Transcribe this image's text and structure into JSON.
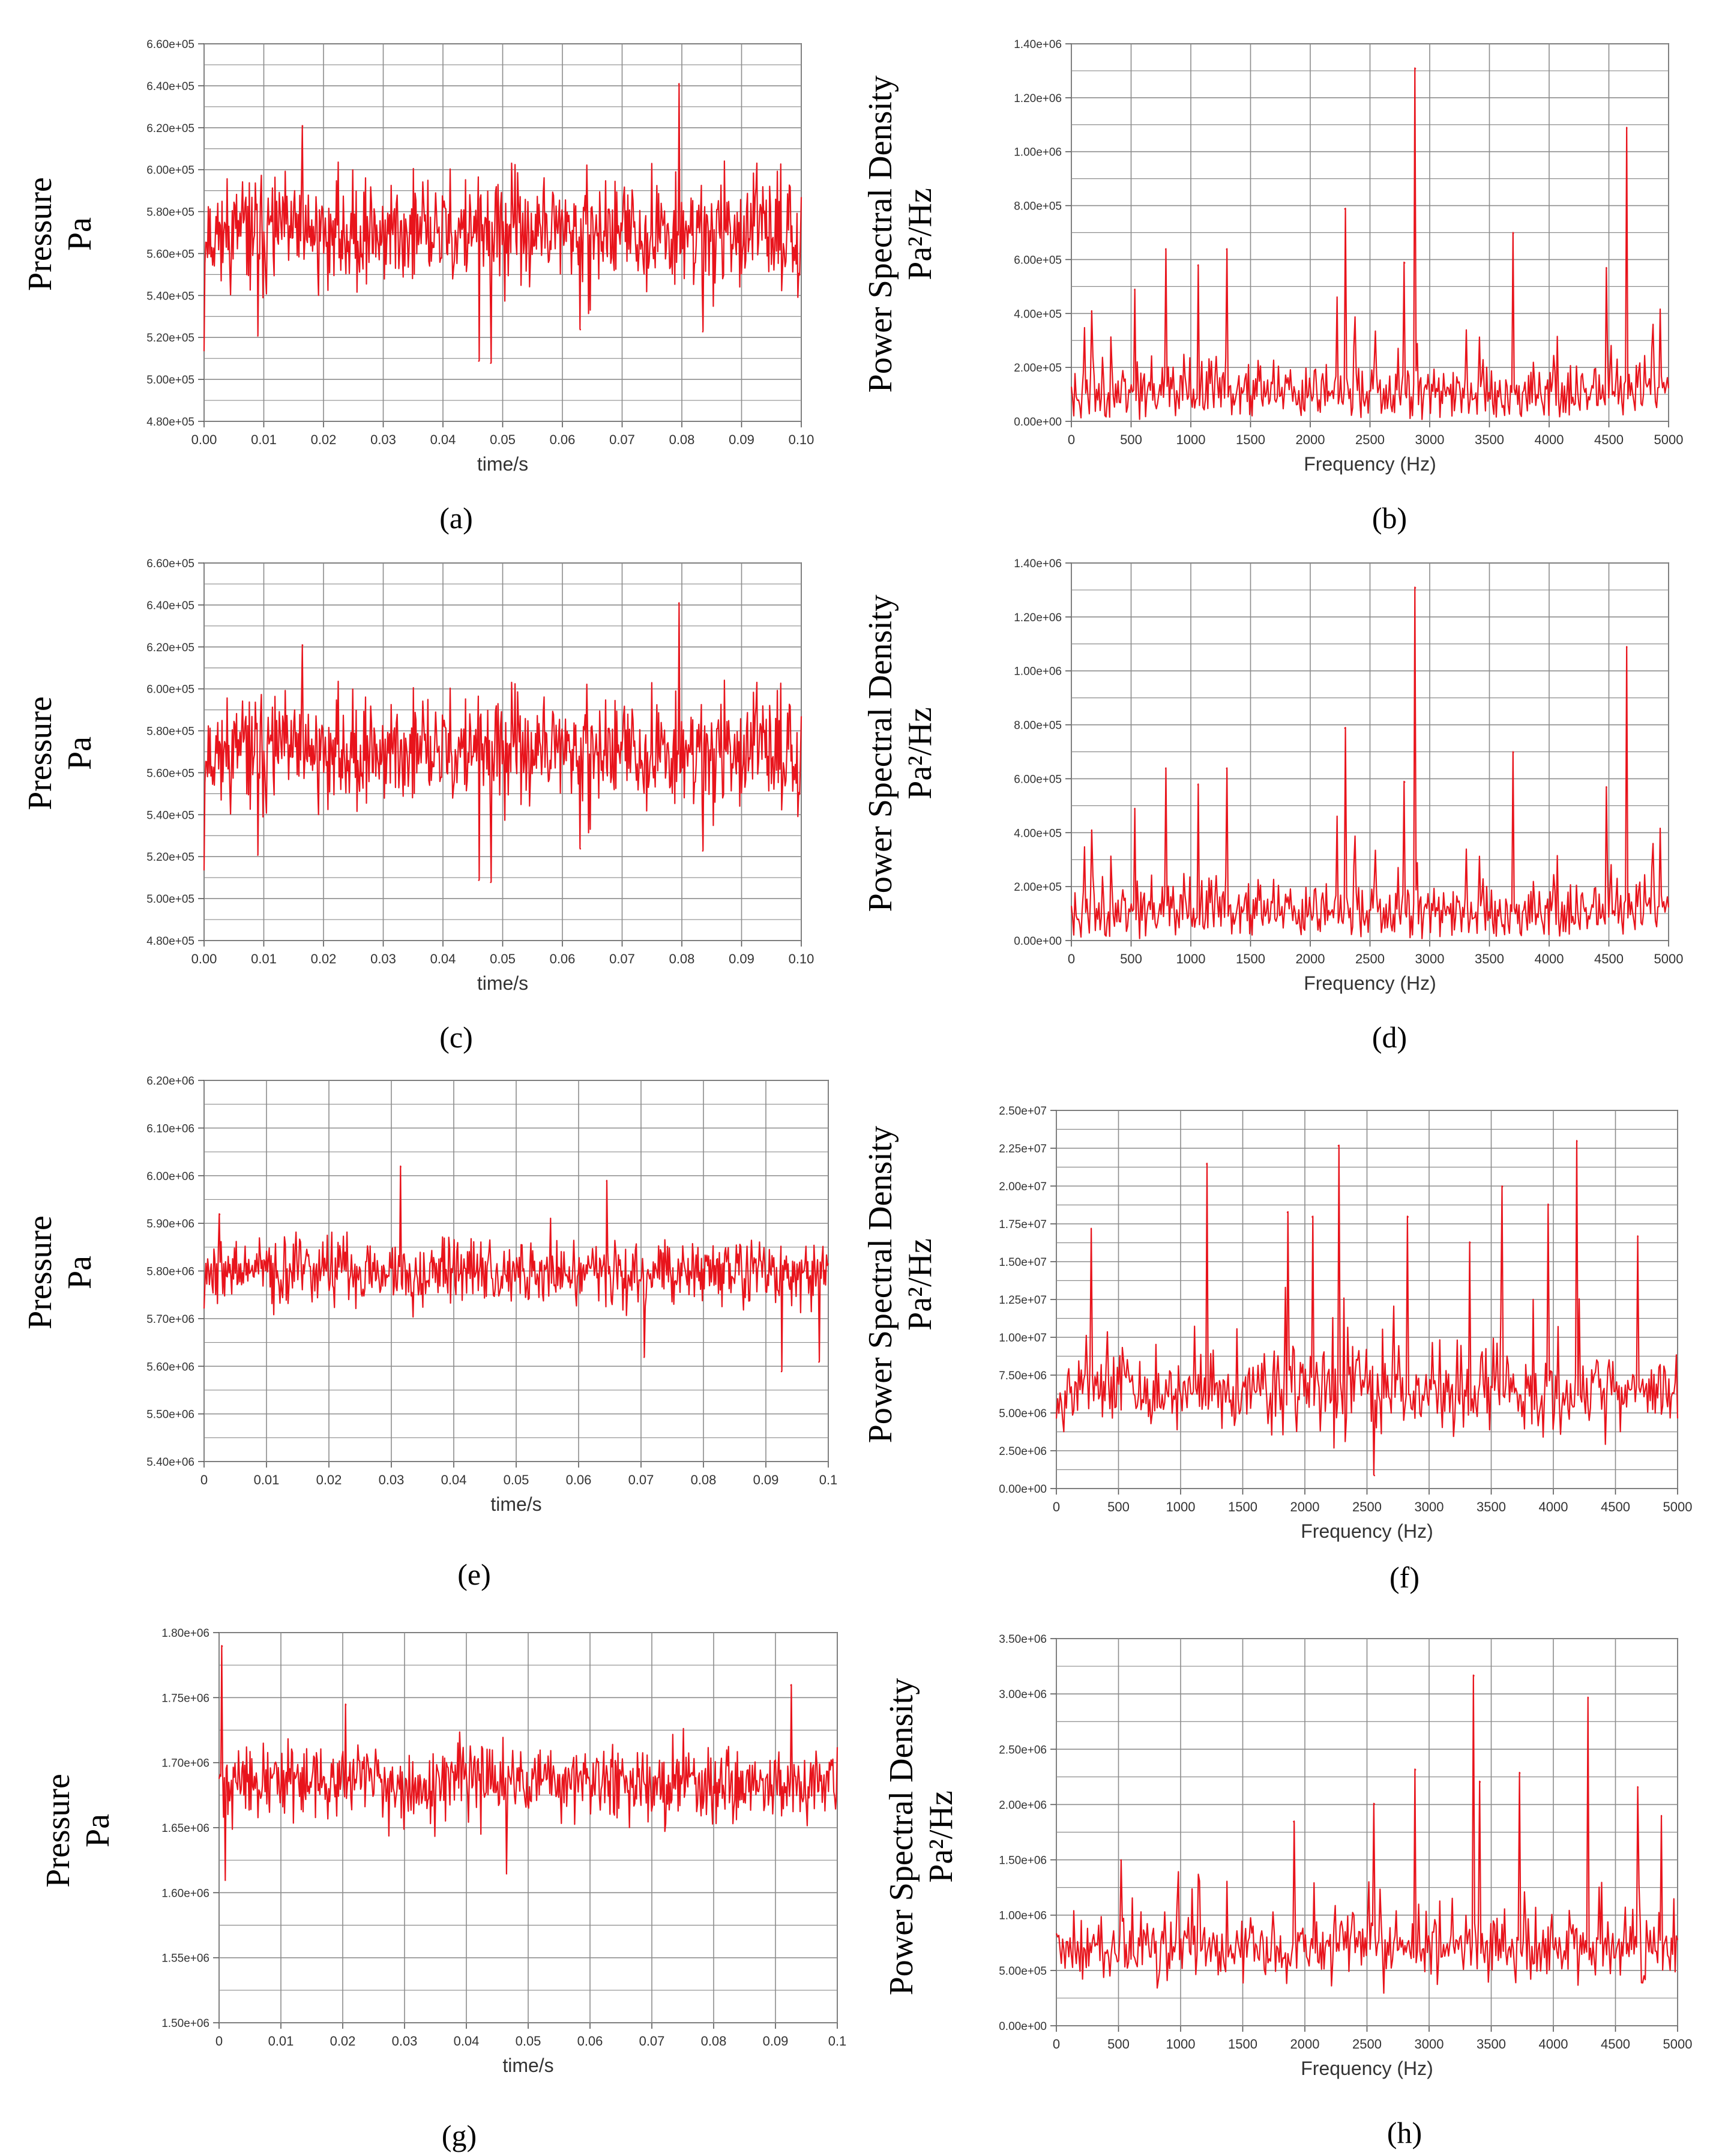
{
  "figure": {
    "series_color": "#e8141c",
    "grid_color": "#8c8c8c"
  },
  "chart_data": [
    {
      "id": "a",
      "caption": "(a)",
      "type": "line",
      "title": "",
      "xlabel": "time/s",
      "ylabel": [
        "Pressure",
        "Pa"
      ],
      "xlim": [
        0,
        0.1
      ],
      "ylim": [
        480000,
        660000
      ],
      "xticks": [
        "0.00",
        "0.01",
        "0.02",
        "0.03",
        "0.04",
        "0.05",
        "0.06",
        "0.07",
        "0.08",
        "0.09",
        "0.10"
      ],
      "yticks": [
        "4.80e+05",
        "5.00e+05",
        "5.20e+05",
        "5.40e+05",
        "5.60e+05",
        "5.80e+05",
        "6.00e+05",
        "6.20e+05",
        "6.40e+05",
        "6.60e+05"
      ],
      "grid": true,
      "signal": {
        "kind": "pressure",
        "mean": 570000,
        "amp": 20000,
        "n": 700,
        "seed": 11
      },
      "annotations": [
        {
          "x": 0.0,
          "y": 514000
        },
        {
          "x": 0.0165,
          "y": 621000
        },
        {
          "x": 0.046,
          "y": 509000
        },
        {
          "x": 0.048,
          "y": 508000
        },
        {
          "x": 0.0795,
          "y": 641000
        },
        {
          "x": 0.0835,
          "y": 523000
        },
        {
          "x": 0.063,
          "y": 524000
        },
        {
          "x": 0.009,
          "y": 521000
        }
      ]
    },
    {
      "id": "b",
      "caption": "(b)",
      "type": "line",
      "title": "",
      "xlabel": "Frequency (Hz)",
      "ylabel": [
        "Power Spectral Density",
        "Pa²/Hz"
      ],
      "xlim": [
        0,
        5000
      ],
      "ylim": [
        0,
        1400000
      ],
      "xticks": [
        "0",
        "500",
        "1000",
        "1500",
        "2000",
        "2500",
        "3000",
        "3500",
        "4000",
        "4500",
        "5000"
      ],
      "yticks": [
        "0.00e+00",
        "2.00e+05",
        "4.00e+05",
        "6.00e+05",
        "8.00e+05",
        "1.00e+06",
        "1.20e+06",
        "1.40e+06"
      ],
      "grid": true,
      "signal": {
        "kind": "psd",
        "base": 110000,
        "amp": 110000,
        "n": 500,
        "seed": 23
      },
      "annotations": [
        {
          "x": 2880,
          "y": 1310000
        },
        {
          "x": 4650,
          "y": 1090000
        },
        {
          "x": 2290,
          "y": 790000
        },
        {
          "x": 3700,
          "y": 700000
        },
        {
          "x": 790,
          "y": 640000
        },
        {
          "x": 1300,
          "y": 640000
        },
        {
          "x": 2790,
          "y": 590000
        },
        {
          "x": 1060,
          "y": 580000
        },
        {
          "x": 4480,
          "y": 570000
        },
        {
          "x": 530,
          "y": 490000
        },
        {
          "x": 4870,
          "y": 360000
        },
        {
          "x": 170,
          "y": 410000
        }
      ]
    },
    {
      "id": "c",
      "caption": "(c)",
      "type": "line",
      "title": "",
      "xlabel": "time/s",
      "ylabel": [
        "Pressure",
        "Pa"
      ],
      "xlim": [
        0,
        0.1
      ],
      "ylim": [
        480000,
        660000
      ],
      "xticks": [
        "0.00",
        "0.01",
        "0.02",
        "0.03",
        "0.04",
        "0.05",
        "0.06",
        "0.07",
        "0.08",
        "0.09",
        "0.10"
      ],
      "yticks": [
        "4.80e+05",
        "5.00e+05",
        "5.20e+05",
        "5.40e+05",
        "5.60e+05",
        "5.80e+05",
        "6.00e+05",
        "6.20e+05",
        "6.40e+05",
        "6.60e+05"
      ],
      "grid": true,
      "signal": {
        "kind": "pressure",
        "mean": 570000,
        "amp": 20000,
        "n": 700,
        "seed": 11
      },
      "annotations": [
        {
          "x": 0.0,
          "y": 514000
        },
        {
          "x": 0.0165,
          "y": 621000
        },
        {
          "x": 0.046,
          "y": 509000
        },
        {
          "x": 0.048,
          "y": 508000
        },
        {
          "x": 0.0795,
          "y": 641000
        },
        {
          "x": 0.0835,
          "y": 523000
        },
        {
          "x": 0.063,
          "y": 524000
        },
        {
          "x": 0.009,
          "y": 521000
        }
      ]
    },
    {
      "id": "d",
      "caption": "(d)",
      "type": "line",
      "title": "",
      "xlabel": "Frequency (Hz)",
      "ylabel": [
        "Power Spectral Density",
        "Pa²/Hz"
      ],
      "xlim": [
        0,
        5000
      ],
      "ylim": [
        0,
        1400000
      ],
      "xticks": [
        "0",
        "500",
        "1000",
        "1500",
        "2000",
        "2500",
        "3000",
        "3500",
        "4000",
        "4500",
        "5000"
      ],
      "yticks": [
        "0.00e+00",
        "2.00e+05",
        "4.00e+05",
        "6.00e+05",
        "8.00e+05",
        "1.00e+06",
        "1.20e+06",
        "1.40e+06"
      ],
      "grid": true,
      "signal": {
        "kind": "psd",
        "base": 110000,
        "amp": 110000,
        "n": 500,
        "seed": 23
      },
      "annotations": [
        {
          "x": 2880,
          "y": 1310000
        },
        {
          "x": 4650,
          "y": 1090000
        },
        {
          "x": 2290,
          "y": 790000
        },
        {
          "x": 3700,
          "y": 700000
        },
        {
          "x": 790,
          "y": 640000
        },
        {
          "x": 1300,
          "y": 640000
        },
        {
          "x": 2790,
          "y": 590000
        },
        {
          "x": 1060,
          "y": 580000
        },
        {
          "x": 4480,
          "y": 570000
        },
        {
          "x": 530,
          "y": 490000
        },
        {
          "x": 4870,
          "y": 360000
        },
        {
          "x": 170,
          "y": 410000
        }
      ]
    },
    {
      "id": "e",
      "caption": "(e)",
      "type": "line",
      "title": "",
      "xlabel": "time/s",
      "ylabel": [
        "Pressure",
        "Pa"
      ],
      "xlim": [
        0,
        0.1
      ],
      "ylim": [
        5400000,
        6200000
      ],
      "xticks": [
        "0",
        "0.01",
        "0.02",
        "0.03",
        "0.04",
        "0.05",
        "0.06",
        "0.07",
        "0.08",
        "0.09",
        "0.1"
      ],
      "yticks": [
        "5.40e+06",
        "5.50e+06",
        "5.60e+06",
        "5.70e+06",
        "5.80e+06",
        "5.90e+06",
        "6.00e+06",
        "6.10e+06",
        "6.20e+06"
      ],
      "grid": true,
      "signal": {
        "kind": "pressure",
        "mean": 5800000,
        "amp": 55000,
        "n": 700,
        "seed": 37
      },
      "annotations": [
        {
          "x": 0.0315,
          "y": 6020000
        },
        {
          "x": 0.0645,
          "y": 5990000
        },
        {
          "x": 0.0925,
          "y": 5590000
        },
        {
          "x": 0.0705,
          "y": 5620000
        },
        {
          "x": 0.0985,
          "y": 5610000
        },
        {
          "x": 0.0025,
          "y": 5920000
        }
      ]
    },
    {
      "id": "f",
      "caption": "(f)",
      "type": "line",
      "title": "",
      "xlabel": "Frequency (Hz)",
      "ylabel": [
        "Power Spectral Density",
        "Pa²/Hz"
      ],
      "xlim": [
        0,
        5000
      ],
      "ylim": [
        0,
        25000000
      ],
      "xticks": [
        "0",
        "500",
        "1000",
        "1500",
        "2000",
        "2500",
        "3000",
        "3500",
        "4000",
        "4500",
        "5000"
      ],
      "yticks": [
        "0.00e+00",
        "2.50e+06",
        "5.00e+06",
        "7.50e+06",
        "1.00e+07",
        "1.25e+07",
        "1.50e+07",
        "1.75e+07",
        "2.00e+07",
        "2.25e+07",
        "2.50e+07"
      ],
      "grid": true,
      "signal": {
        "kind": "psd",
        "base": 6500000,
        "amp": 2600000,
        "n": 500,
        "seed": 53
      },
      "annotations": [
        {
          "x": 2270,
          "y": 22700000
        },
        {
          "x": 4190,
          "y": 23000000
        },
        {
          "x": 1210,
          "y": 21500000
        },
        {
          "x": 3590,
          "y": 20000000
        },
        {
          "x": 1860,
          "y": 18300000
        },
        {
          "x": 2060,
          "y": 18000000
        },
        {
          "x": 2830,
          "y": 18000000
        },
        {
          "x": 3960,
          "y": 18800000
        },
        {
          "x": 4680,
          "y": 16700000
        },
        {
          "x": 280,
          "y": 17200000
        },
        {
          "x": 3330,
          "y": 16300000
        },
        {
          "x": 2560,
          "y": 900000
        }
      ]
    },
    {
      "id": "g",
      "caption": "(g)",
      "type": "line",
      "title": "",
      "xlabel": "time/s",
      "ylabel": [
        "Pressure",
        "Pa"
      ],
      "xlim": [
        0,
        0.1
      ],
      "ylim": [
        1500000,
        1800000
      ],
      "xticks": [
        "0",
        "0.01",
        "0.02",
        "0.03",
        "0.04",
        "0.05",
        "0.06",
        "0.07",
        "0.08",
        "0.09",
        "0.1"
      ],
      "yticks": [
        "1.50e+06",
        "1.55e+06",
        "1.60e+06",
        "1.65e+06",
        "1.70e+06",
        "1.75e+06",
        "1.80e+06"
      ],
      "grid": true,
      "signal": {
        "kind": "pressure",
        "mean": 1685000,
        "amp": 22000,
        "n": 700,
        "seed": 71
      },
      "annotations": [
        {
          "x": 0.0005,
          "y": 1790000
        },
        {
          "x": 0.001,
          "y": 1610000
        },
        {
          "x": 0.0925,
          "y": 1760000
        },
        {
          "x": 0.0205,
          "y": 1745000
        },
        {
          "x": 0.0465,
          "y": 1615000
        }
      ]
    },
    {
      "id": "h",
      "caption": "(h)",
      "type": "line",
      "title": "",
      "xlabel": "Frequency (Hz)",
      "ylabel": [
        "Power Spectral Density",
        "Pa²/Hz"
      ],
      "xlim": [
        0,
        5000
      ],
      "ylim": [
        0,
        3500000
      ],
      "xticks": [
        "0",
        "500",
        "1000",
        "1500",
        "2000",
        "2500",
        "3000",
        "3500",
        "4000",
        "4500",
        "5000"
      ],
      "yticks": [
        "0.00e+00",
        "5.00e+05",
        "1.00e+06",
        "1.50e+06",
        "2.00e+06",
        "2.50e+06",
        "3.00e+06",
        "3.50e+06"
      ],
      "grid": true,
      "signal": {
        "kind": "psd",
        "base": 700000,
        "amp": 300000,
        "n": 500,
        "seed": 89
      },
      "annotations": [
        {
          "x": 3360,
          "y": 3170000
        },
        {
          "x": 4280,
          "y": 2970000
        },
        {
          "x": 2890,
          "y": 2320000
        },
        {
          "x": 3730,
          "y": 2290000
        },
        {
          "x": 3410,
          "y": 2210000
        },
        {
          "x": 4680,
          "y": 2160000
        },
        {
          "x": 2560,
          "y": 2010000
        },
        {
          "x": 1910,
          "y": 1850000
        },
        {
          "x": 520,
          "y": 1500000
        },
        {
          "x": 4870,
          "y": 1900000
        }
      ]
    }
  ]
}
